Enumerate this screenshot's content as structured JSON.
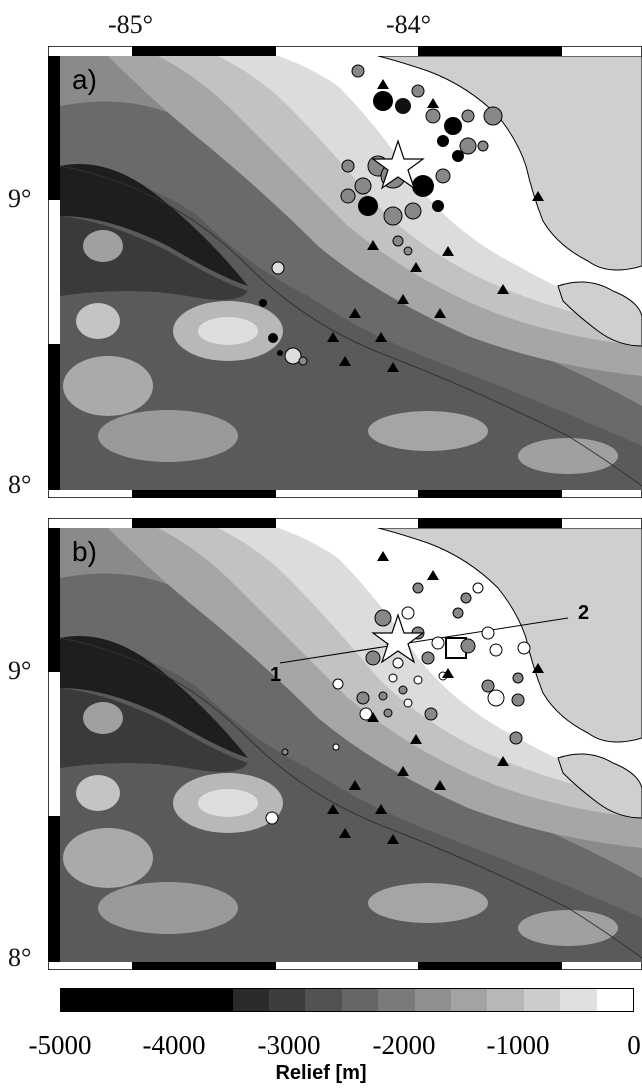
{
  "axes": {
    "lon_labels": [
      "-85°",
      "-84°"
    ],
    "lat_labels_a": [
      "9°",
      "8°"
    ],
    "lat_labels_b": [
      "9°",
      "8°"
    ]
  },
  "panels": [
    {
      "label": "a)"
    },
    {
      "label": "b)",
      "profile": {
        "start_label": "1",
        "end_label": "2"
      }
    }
  ],
  "colorbar": {
    "title": "Relief [m]",
    "ticks": [
      "-5000",
      "-4000",
      "-3000",
      "-2000",
      "-1000",
      "0"
    ],
    "colors": [
      "#000000",
      "#2a2a2a",
      "#3d3d3d",
      "#525252",
      "#666666",
      "#7a7a7a",
      "#8f8f8f",
      "#a3a3a3",
      "#b8b8b8",
      "#cccccc",
      "#e0e0e0",
      "#ffffff"
    ]
  },
  "colors": {
    "land": "#cfcfcf",
    "shelf": "#ffffff"
  }
}
